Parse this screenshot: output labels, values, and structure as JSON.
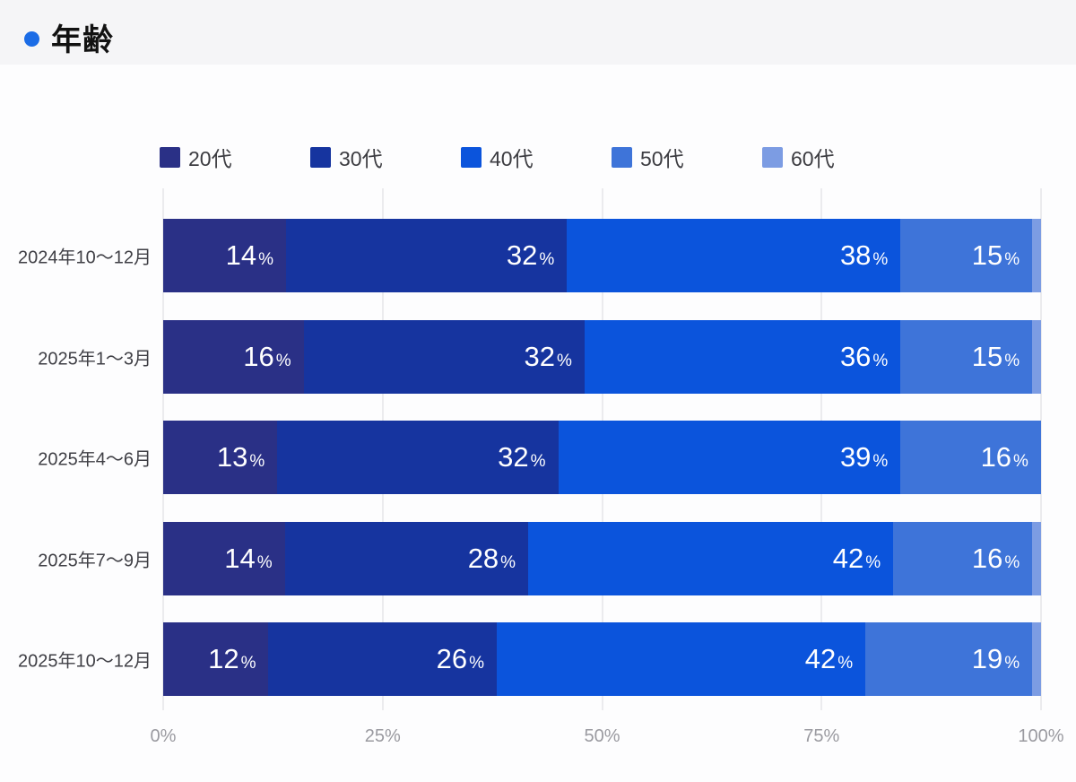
{
  "header": {
    "title": "年齢",
    "dot_color": "#1b6ce6"
  },
  "chart_data": {
    "type": "bar",
    "stacked": true,
    "orientation": "horizontal",
    "title": "年齢",
    "unit": "%",
    "grid": true,
    "legend_position": "top",
    "xlim": [
      0,
      100
    ],
    "x_ticks": [
      "0%",
      "25%",
      "50%",
      "75%",
      "100%"
    ],
    "value_label_min": 3,
    "legend": [
      {
        "label": "20代",
        "color": "#2a3086"
      },
      {
        "label": "30代",
        "color": "#16349f"
      },
      {
        "label": "40代",
        "color": "#0b54dc"
      },
      {
        "label": "50代",
        "color": "#3e74d9"
      },
      {
        "label": "60代",
        "color": "#7c9ce3"
      }
    ],
    "categories": [
      "2024年10〜12月",
      "2025年1〜3月",
      "2025年4〜6月",
      "2025年7〜9月",
      "2025年10〜12月"
    ],
    "series": [
      {
        "name": "20代",
        "values": [
          14,
          16,
          13,
          14,
          12
        ]
      },
      {
        "name": "30代",
        "values": [
          32,
          32,
          32,
          28,
          26
        ]
      },
      {
        "name": "40代",
        "values": [
          38,
          36,
          39,
          42,
          42
        ]
      },
      {
        "name": "50代",
        "values": [
          15,
          15,
          16,
          16,
          19
        ]
      },
      {
        "name": "60代",
        "values": [
          1,
          1,
          0,
          1,
          1
        ]
      }
    ]
  }
}
